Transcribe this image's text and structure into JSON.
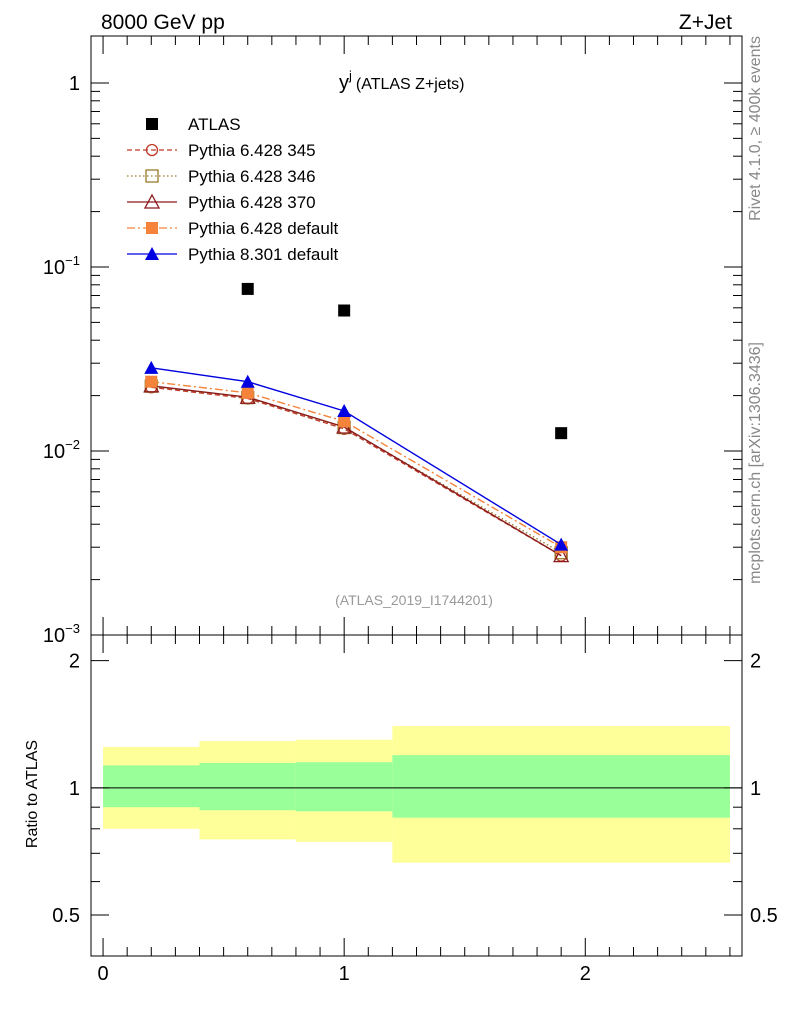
{
  "header": {
    "left_label": "8000 GeV pp",
    "right_label": "Z+Jet"
  },
  "side_labels": {
    "rivet": "Rivet 4.1.0, ≥ 400k events",
    "mcplots": "mcplots.cern.ch [arXiv:1306.3436]"
  },
  "colors": {
    "atlas": "#000000",
    "p345": "#c0392b",
    "p346": "#9c7a2c",
    "p370": "#8b1a1a",
    "p6default": "#f5843a",
    "p8default": "#0000e0",
    "band_outer": "#ffff99",
    "band_inner": "#99ff99"
  },
  "chart_data": [
    {
      "type": "line",
      "title": "y^j (ATLAS Z+jets)",
      "title_main": "y",
      "title_sup": "j",
      "title_rest": "(ATLAS Z+jets)",
      "watermark": "(ATLAS_2019_I1744201)",
      "xlabel": "",
      "ylabel": "",
      "yscale": "log",
      "xlim": [
        -0.05,
        2.65
      ],
      "ylim": [
        0.001,
        1.8
      ],
      "yticks": [
        {
          "value": 1,
          "base": "1",
          "exp": ""
        },
        {
          "value": 0.1,
          "base": "10",
          "exp": "−1"
        },
        {
          "value": 0.01,
          "base": "10",
          "exp": "−2"
        },
        {
          "value": 0.001,
          "base": "10",
          "exp": "−3"
        }
      ],
      "legend_position": "top-left",
      "series": [
        {
          "name": "ATLAS",
          "key": "atlas",
          "marker": "square",
          "line": "none",
          "x": [
            0.6,
            1.0,
            1.9
          ],
          "y": [
            0.076,
            0.058,
            0.0125
          ]
        },
        {
          "name": "Pythia 6.428 345",
          "key": "p345",
          "marker": "circle-open",
          "line": "dashed",
          "x": [
            0.2,
            0.6,
            1.0,
            1.9
          ],
          "y": [
            0.0222,
            0.0193,
            0.0132,
            0.0027
          ]
        },
        {
          "name": "Pythia 6.428 346",
          "key": "p346",
          "marker": "square-open",
          "line": "dotted",
          "x": [
            0.2,
            0.6,
            1.0,
            1.9
          ],
          "y": [
            0.0225,
            0.0195,
            0.0134,
            0.0028
          ]
        },
        {
          "name": "Pythia 6.428 370",
          "key": "p370",
          "marker": "triangle-open",
          "line": "solid",
          "x": [
            0.2,
            0.6,
            1.0,
            1.9
          ],
          "y": [
            0.0226,
            0.0196,
            0.0135,
            0.0027
          ]
        },
        {
          "name": "Pythia 6.428 default",
          "key": "p6default",
          "marker": "square",
          "line": "dashdot",
          "x": [
            0.2,
            0.6,
            1.0,
            1.9
          ],
          "y": [
            0.0238,
            0.0207,
            0.0145,
            0.003
          ]
        },
        {
          "name": "Pythia 8.301 default",
          "key": "p8default",
          "marker": "triangle",
          "line": "solid",
          "x": [
            0.2,
            0.6,
            1.0,
            1.9
          ],
          "y": [
            0.0283,
            0.0238,
            0.0165,
            0.0031
          ]
        }
      ]
    },
    {
      "type": "area",
      "title": "",
      "xlabel": "",
      "ylabel": "Ratio to ATLAS",
      "yscale": "log",
      "xlim": [
        -0.05,
        2.65
      ],
      "ylim": [
        0.4,
        2.3
      ],
      "yticks": [
        {
          "value": 2,
          "label": "2"
        },
        {
          "value": 1,
          "label": "1"
        },
        {
          "value": 0.5,
          "label": "0.5"
        }
      ],
      "xticks": [
        {
          "value": 0,
          "label": "0"
        },
        {
          "value": 1,
          "label": "1"
        },
        {
          "value": 2,
          "label": "2"
        }
      ],
      "reference_line": 1,
      "bins": [
        {
          "x_low": 0.0,
          "x_high": 0.4,
          "outer_low": 0.8,
          "outer_high": 1.25,
          "inner_low": 0.9,
          "inner_high": 1.13
        },
        {
          "x_low": 0.4,
          "x_high": 0.8,
          "outer_low": 0.755,
          "outer_high": 1.29,
          "inner_low": 0.885,
          "inner_high": 1.145
        },
        {
          "x_low": 0.8,
          "x_high": 1.2,
          "outer_low": 0.745,
          "outer_high": 1.3,
          "inner_low": 0.88,
          "inner_high": 1.15
        },
        {
          "x_low": 1.2,
          "x_high": 2.6,
          "outer_low": 0.665,
          "outer_high": 1.4,
          "inner_low": 0.85,
          "inner_high": 1.195
        }
      ]
    }
  ]
}
